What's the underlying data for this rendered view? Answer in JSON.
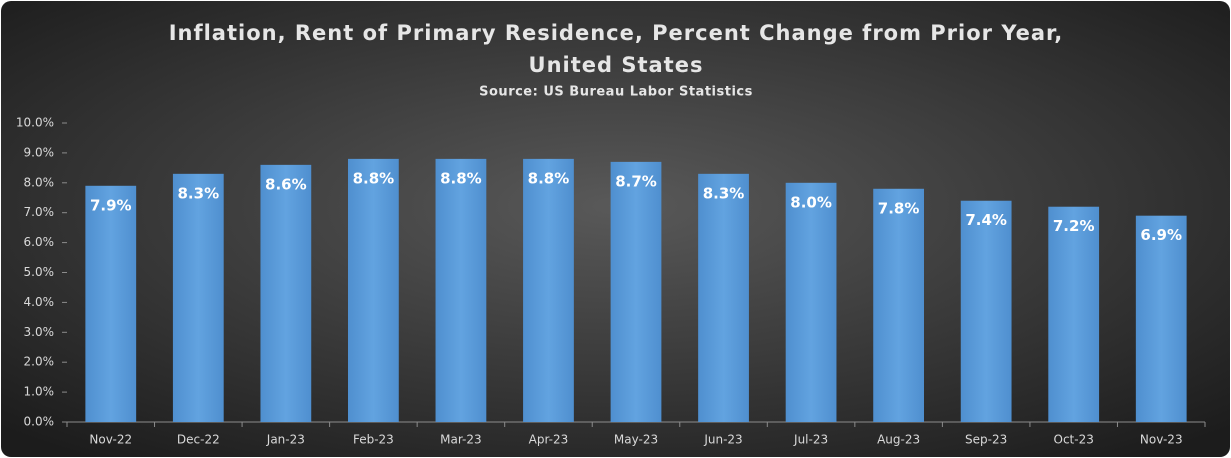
{
  "chart_data": {
    "type": "bar",
    "title": [
      "Inflation, Rent of Primary Residence, Percent Change from Prior Year,",
      "United States"
    ],
    "subtitle": "Source: US Bureau Labor Statistics",
    "categories": [
      "Nov-22",
      "Dec-22",
      "Jan-23",
      "Feb-23",
      "Mar-23",
      "Apr-23",
      "May-23",
      "Jun-23",
      "Jul-23",
      "Aug-23",
      "Sep-23",
      "Oct-23",
      "Nov-23"
    ],
    "values": [
      7.9,
      8.3,
      8.6,
      8.8,
      8.8,
      8.8,
      8.7,
      8.3,
      8.0,
      7.8,
      7.4,
      7.2,
      6.9
    ],
    "value_labels": [
      "7.9%",
      "8.3%",
      "8.6%",
      "8.8%",
      "8.8%",
      "8.8%",
      "8.7%",
      "8.3%",
      "8.0%",
      "7.8%",
      "7.4%",
      "7.2%",
      "6.9%"
    ],
    "color": "#5b9bd5",
    "ylim": [
      0,
      10
    ],
    "yticks": [
      {
        "value": 0,
        "label": "0.0%"
      },
      {
        "value": 1,
        "label": "1.0%"
      },
      {
        "value": 2,
        "label": "2.0%"
      },
      {
        "value": 3,
        "label": "3.0%"
      },
      {
        "value": 4,
        "label": "4.0%"
      },
      {
        "value": 5,
        "label": "5.0%"
      },
      {
        "value": 6,
        "label": "6.0%"
      },
      {
        "value": 7,
        "label": "7.0%"
      },
      {
        "value": 8,
        "label": "8.0%"
      },
      {
        "value": 9,
        "label": "9.0%"
      },
      {
        "value": 10,
        "label": "10.0%"
      }
    ],
    "grid": false
  }
}
